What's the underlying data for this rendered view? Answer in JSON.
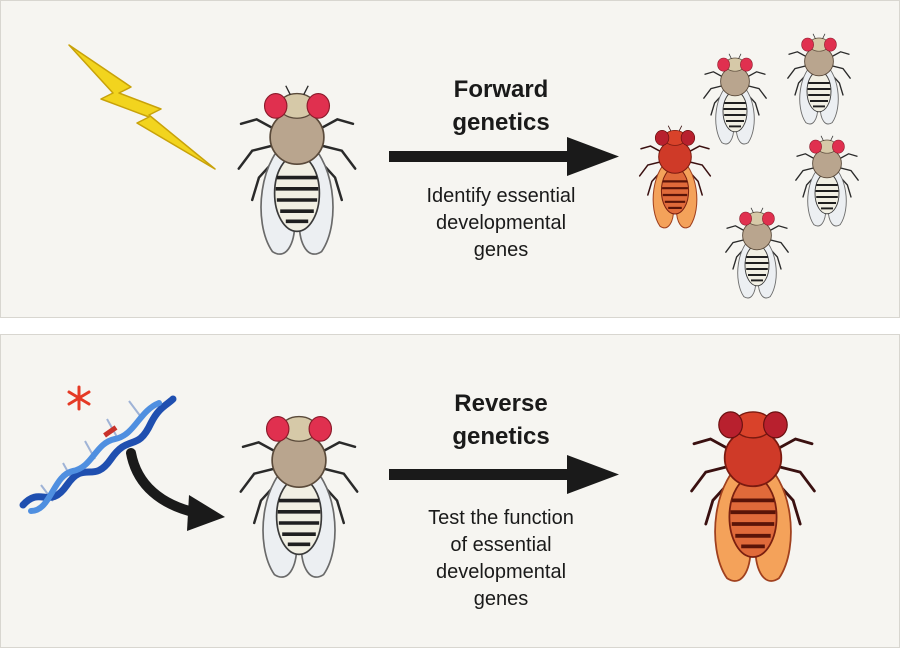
{
  "forward": {
    "title_line1": "Forward",
    "title_line2": "genetics",
    "desc_line1": "Identify essential",
    "desc_line2": "developmental",
    "desc_line3": "genes"
  },
  "reverse": {
    "title_line1": "Reverse",
    "title_line2": "genetics",
    "desc_line1": "Test the function",
    "desc_line2": "of essential",
    "desc_line3": "developmental",
    "desc_line4": "genes"
  },
  "colors": {
    "panel_bg": "#f6f5f1",
    "arrow": "#1a1a1a",
    "lightning": "#f2d41e",
    "dna_blue": "#2a66c8",
    "asterisk": "#e53a25",
    "mutant_red": "#d9422a",
    "mutant_orange": "#f08a3c",
    "eye_red": "#e0304f"
  }
}
